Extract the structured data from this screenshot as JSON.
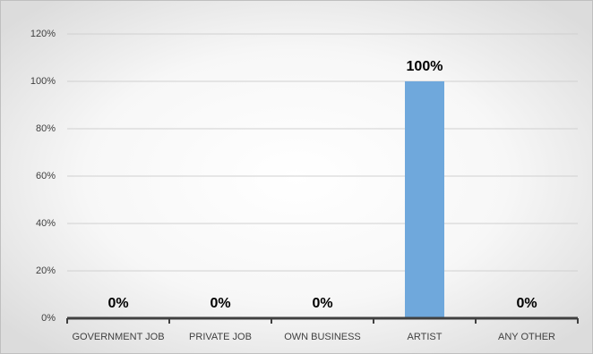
{
  "chart_data": {
    "type": "bar",
    "categories": [
      "GOVERNMENT JOB",
      "PRIVATE JOB",
      "OWN BUSINESS",
      "ARTIST",
      "ANY OTHER"
    ],
    "values": [
      0,
      0,
      0,
      100,
      0
    ],
    "value_labels": [
      "0%",
      "0%",
      "0%",
      "100%",
      "0%"
    ],
    "color": "#6fa8dc",
    "ylim": [
      0,
      120
    ],
    "yticks": [
      {
        "value": 0,
        "label": "0%"
      },
      {
        "value": 20,
        "label": "20%"
      },
      {
        "value": 40,
        "label": "40%"
      },
      {
        "value": 60,
        "label": "60%"
      },
      {
        "value": 80,
        "label": "80%"
      },
      {
        "value": 100,
        "label": "100%"
      },
      {
        "value": 120,
        "label": "120%"
      }
    ],
    "grid": true
  }
}
